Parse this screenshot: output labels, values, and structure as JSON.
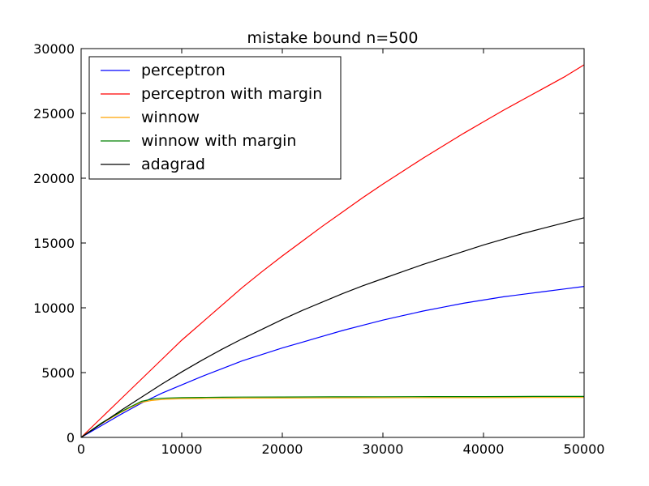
{
  "chart_data": {
    "type": "line",
    "title": "mistake bound n=500",
    "xlabel": "",
    "ylabel": "",
    "xlim": [
      0,
      50000
    ],
    "ylim": [
      0,
      30000
    ],
    "xticks": [
      0,
      10000,
      20000,
      30000,
      40000,
      50000
    ],
    "yticks": [
      0,
      5000,
      10000,
      15000,
      20000,
      25000,
      30000
    ],
    "grid": false,
    "legend_position": "top-left",
    "series": [
      {
        "name": "perceptron",
        "color": "#0000ff",
        "x": [
          0,
          2000,
          4000,
          6000,
          8000,
          10000,
          12000,
          14000,
          16000,
          18000,
          20000,
          22000,
          24000,
          26000,
          28000,
          30000,
          32000,
          34000,
          36000,
          38000,
          40000,
          42000,
          44000,
          46000,
          48000,
          50000
        ],
        "y": [
          0,
          900,
          1800,
          2650,
          3400,
          4050,
          4700,
          5300,
          5900,
          6400,
          6900,
          7350,
          7800,
          8250,
          8650,
          9050,
          9400,
          9750,
          10050,
          10350,
          10600,
          10850,
          11050,
          11250,
          11450,
          11650
        ]
      },
      {
        "name": "perceptron with margin",
        "color": "#ff0000",
        "x": [
          0,
          2000,
          4000,
          6000,
          8000,
          10000,
          12000,
          14000,
          16000,
          18000,
          20000,
          22000,
          24000,
          26000,
          28000,
          30000,
          32000,
          34000,
          36000,
          38000,
          40000,
          42000,
          44000,
          46000,
          48000,
          50000
        ],
        "y": [
          0,
          1500,
          3000,
          4500,
          6000,
          7500,
          8850,
          10200,
          11550,
          12800,
          14000,
          15150,
          16300,
          17400,
          18500,
          19550,
          20550,
          21550,
          22500,
          23450,
          24350,
          25250,
          26100,
          26950,
          27800,
          28750
        ]
      },
      {
        "name": "winnow",
        "color": "#ffa500",
        "x": [
          0,
          1000,
          2000,
          3000,
          4000,
          5000,
          6000,
          7000,
          8000,
          9000,
          10000,
          12000,
          14000,
          16000,
          20000,
          25000,
          30000,
          35000,
          40000,
          45000,
          50000
        ],
        "y": [
          0,
          550,
          1050,
          1500,
          1950,
          2350,
          2700,
          2850,
          2920,
          2960,
          2980,
          3000,
          3010,
          3030,
          3040,
          3050,
          3060,
          3070,
          3070,
          3080,
          3080
        ]
      },
      {
        "name": "winnow with margin",
        "color": "#008000",
        "x": [
          0,
          1000,
          2000,
          3000,
          4000,
          5000,
          6000,
          7000,
          8000,
          9000,
          10000,
          12000,
          14000,
          16000,
          20000,
          25000,
          30000,
          35000,
          40000,
          45000,
          50000
        ],
        "y": [
          0,
          550,
          1100,
          1550,
          2000,
          2400,
          2780,
          2950,
          3020,
          3050,
          3070,
          3090,
          3100,
          3110,
          3120,
          3130,
          3140,
          3150,
          3150,
          3160,
          3160
        ]
      },
      {
        "name": "adagrad",
        "color": "#000000",
        "x": [
          0,
          2000,
          4000,
          6000,
          8000,
          10000,
          12000,
          14000,
          16000,
          18000,
          20000,
          22000,
          24000,
          26000,
          28000,
          30000,
          32000,
          34000,
          36000,
          38000,
          40000,
          42000,
          44000,
          46000,
          48000,
          50000
        ],
        "y": [
          0,
          1050,
          2100,
          3100,
          4100,
          5050,
          5950,
          6800,
          7600,
          8350,
          9100,
          9800,
          10450,
          11100,
          11700,
          12250,
          12800,
          13350,
          13850,
          14350,
          14850,
          15300,
          15750,
          16150,
          16550,
          16950
        ]
      }
    ]
  }
}
